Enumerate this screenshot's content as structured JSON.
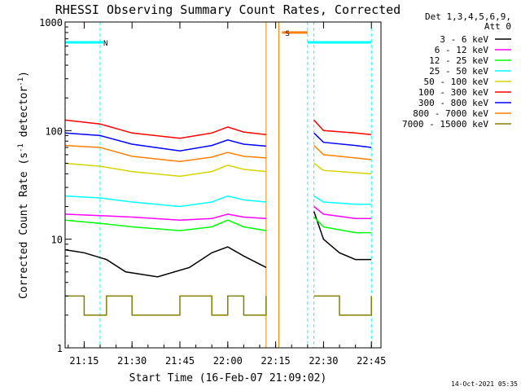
{
  "chart_data": {
    "type": "line",
    "title": "RHESSI Observing Summary Count Rates, Corrected",
    "xlabel": "Start Time (16-Feb-07 21:09:02)",
    "ylabel_parts": [
      "Corrected Count Rate (s",
      "-1",
      " detector",
      "-1",
      ")"
    ],
    "yscale": "log",
    "ylim": [
      1,
      1000
    ],
    "y_ticks": [
      {
        "v": 1,
        "label": "1"
      },
      {
        "v": 10,
        "label": "10"
      },
      {
        "v": 100,
        "label": "100"
      },
      {
        "v": 1000,
        "label": "1000"
      }
    ],
    "xlim": [
      "21:09:02",
      "22:48:00"
    ],
    "x_ticks": [
      "21:15",
      "21:30",
      "21:45",
      "22:00",
      "22:15",
      "22:30",
      "22:45"
    ],
    "legend_header": [
      "Det 1,3,4,5,6,9,",
      "Att 0"
    ],
    "legend_position": "right",
    "series": [
      {
        "name": "3 - 6 keV",
        "color": "#000000",
        "segments": [
          {
            "x": [
              "21:09",
              "21:15",
              "21:22",
              "21:28",
              "21:38",
              "21:48",
              "21:55",
              "22:00",
              "22:05",
              "22:12"
            ],
            "y": [
              8.0,
              7.5,
              6.5,
              5.0,
              4.5,
              5.5,
              7.5,
              8.5,
              7.0,
              5.5
            ]
          },
          {
            "x": [
              "22:27",
              "22:30",
              "22:35",
              "22:40",
              "22:45"
            ],
            "y": [
              18,
              10,
              7.5,
              6.5,
              6.5
            ]
          }
        ]
      },
      {
        "name": "6 - 12 keV",
        "color": "#ff00ff",
        "segments": [
          {
            "x": [
              "21:09",
              "21:20",
              "21:30",
              "21:45",
              "21:55",
              "22:00",
              "22:05",
              "22:12"
            ],
            "y": [
              17,
              16.5,
              16,
              15,
              15.5,
              17,
              16,
              15.5
            ]
          },
          {
            "x": [
              "22:27",
              "22:30",
              "22:40",
              "22:45"
            ],
            "y": [
              20,
              17,
              15.5,
              15.5
            ]
          }
        ]
      },
      {
        "name": "12 - 25 keV",
        "color": "#00ff00",
        "segments": [
          {
            "x": [
              "21:09",
              "21:20",
              "21:30",
              "21:45",
              "21:55",
              "22:00",
              "22:05",
              "22:12"
            ],
            "y": [
              15,
              14,
              13,
              12,
              13,
              15,
              13,
              12
            ]
          },
          {
            "x": [
              "22:27",
              "22:30",
              "22:40",
              "22:45"
            ],
            "y": [
              16,
              13,
              11.5,
              11.5
            ]
          }
        ]
      },
      {
        "name": "25 - 50 keV",
        "color": "#00ffff",
        "segments": [
          {
            "x": [
              "21:09",
              "21:20",
              "21:30",
              "21:45",
              "21:55",
              "22:00",
              "22:05",
              "22:12"
            ],
            "y": [
              25,
              24,
              22,
              20,
              22,
              25,
              23,
              22
            ]
          },
          {
            "x": [
              "22:27",
              "22:30",
              "22:40",
              "22:45"
            ],
            "y": [
              25,
              22,
              21,
              21
            ]
          }
        ]
      },
      {
        "name": "50 - 100 keV",
        "color": "#d4d400",
        "segments": [
          {
            "x": [
              "21:09",
              "21:20",
              "21:30",
              "21:45",
              "21:55",
              "22:00",
              "22:05",
              "22:12"
            ],
            "y": [
              50,
              47,
              42,
              38,
              42,
              48,
              44,
              42
            ]
          },
          {
            "x": [
              "22:27",
              "22:30",
              "22:40",
              "22:45"
            ],
            "y": [
              50,
              43,
              41,
              40
            ]
          }
        ]
      },
      {
        "name": "100 - 300 keV",
        "color": "#ff0000",
        "segments": [
          {
            "x": [
              "21:09",
              "21:20",
              "21:30",
              "21:45",
              "21:55",
              "22:00",
              "22:05",
              "22:12"
            ],
            "y": [
              125,
              115,
              95,
              85,
              95,
              108,
              97,
              92
            ]
          },
          {
            "x": [
              "22:27",
              "22:30",
              "22:40",
              "22:45"
            ],
            "y": [
              125,
              100,
              95,
              92
            ]
          }
        ]
      },
      {
        "name": "300 - 800 keV",
        "color": "#0000ff",
        "segments": [
          {
            "x": [
              "21:09",
              "21:20",
              "21:30",
              "21:45",
              "21:55",
              "22:00",
              "22:05",
              "22:12"
            ],
            "y": [
              95,
              90,
              75,
              65,
              73,
              82,
              75,
              72
            ]
          },
          {
            "x": [
              "22:27",
              "22:30",
              "22:40",
              "22:45"
            ],
            "y": [
              95,
              78,
              73,
              70
            ]
          }
        ]
      },
      {
        "name": "800 - 7000 keV",
        "color": "#ff8000",
        "segments": [
          {
            "x": [
              "21:09",
              "21:20",
              "21:30",
              "21:45",
              "21:55",
              "22:00",
              "22:05",
              "22:12"
            ],
            "y": [
              73,
              70,
              58,
              52,
              57,
              63,
              58,
              56
            ]
          },
          {
            "x": [
              "22:27",
              "22:30",
              "22:40",
              "22:45"
            ],
            "y": [
              73,
              60,
              56,
              54
            ]
          }
        ]
      },
      {
        "name": "7000 - 15000 keV",
        "color": "#808000",
        "style": "steps",
        "segments": [
          {
            "x": [
              "21:09",
              "21:15",
              "21:22",
              "21:30",
              "21:40",
              "21:45",
              "21:50",
              "21:55",
              "22:00",
              "22:05",
              "22:12"
            ],
            "y": [
              3,
              2,
              3,
              2,
              2,
              3,
              3,
              2,
              3,
              2,
              3
            ]
          },
          {
            "x": [
              "22:27",
              "22:35",
              "22:40",
              "22:45"
            ],
            "y": [
              3,
              2,
              2,
              3
            ]
          }
        ]
      }
    ],
    "flag_bars": [
      {
        "label": "",
        "color": "#00ffff",
        "x": [
          "21:09",
          "21:20"
        ],
        "y": 650
      },
      {
        "label": "N",
        "color": "#00ffff",
        "x": [
          "21:20",
          "21:21"
        ],
        "y": 650
      },
      {
        "label": "S",
        "color": "#ff8000",
        "x": [
          "22:17",
          "22:25"
        ],
        "y": 800
      },
      {
        "label": "",
        "color": "#00ffff",
        "x": [
          "22:25",
          "22:45"
        ],
        "y": 650
      }
    ],
    "vertical_markers": [
      {
        "x": "21:09",
        "color": "#00ffff",
        "style": "dashed"
      },
      {
        "x": "21:20",
        "color": "#00ffff",
        "style": "dashed"
      },
      {
        "x": "22:12",
        "color": "#ff8000",
        "style": "solid"
      },
      {
        "x": "22:16",
        "color": "#ff8000",
        "style": "solid"
      },
      {
        "x": "22:25",
        "color": "#00ffff",
        "style": "dashed"
      },
      {
        "x": "22:27",
        "color": "#00ffff",
        "style": "dashed"
      },
      {
        "x": "22:45",
        "color": "#00ffff",
        "style": "dashed"
      }
    ]
  },
  "footer_timestamp": "14-Oct-2021 05:35"
}
